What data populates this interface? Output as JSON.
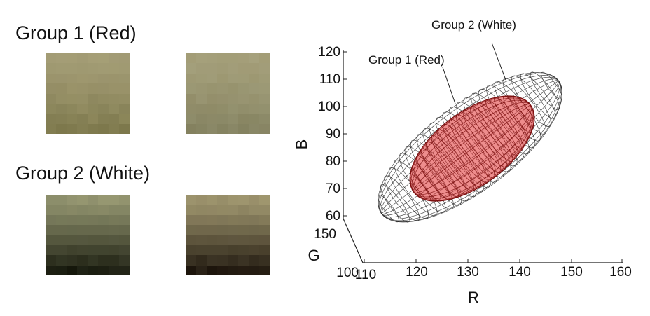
{
  "groups": [
    {
      "title": "Group 1 (Red)",
      "patches": [
        {
          "top": "#a69f79",
          "bottom": "#817c50",
          "dark": "#857f4d"
        },
        {
          "top": "#a8a27c",
          "bottom": "#888563",
          "dark": "#7c8064"
        }
      ]
    },
    {
      "title": "Group 2 (White)",
      "patches": [
        {
          "top": "#9b9c76",
          "bottom": "#1a1c10",
          "dark": "#2a2f1c"
        },
        {
          "top": "#a59c74",
          "bottom": "#211910",
          "dark": "#3a2e1a"
        }
      ]
    }
  ],
  "plot": {
    "b_label": "B",
    "g_label": "G",
    "r_label": "R",
    "b_ticks": [
      "120",
      "110",
      "100",
      "90",
      "80",
      "70",
      "60"
    ],
    "g_ticks": [
      "150",
      "100"
    ],
    "r_ticks": [
      "110",
      "120",
      "130",
      "140",
      "150",
      "160"
    ],
    "annotation_red": "Group 1 (Red)",
    "annotation_white": "Group 2 (White)",
    "colors": {
      "red_fill": "#e03030",
      "red_edge": "#7a0d0d",
      "wire": "#222222"
    }
  }
}
